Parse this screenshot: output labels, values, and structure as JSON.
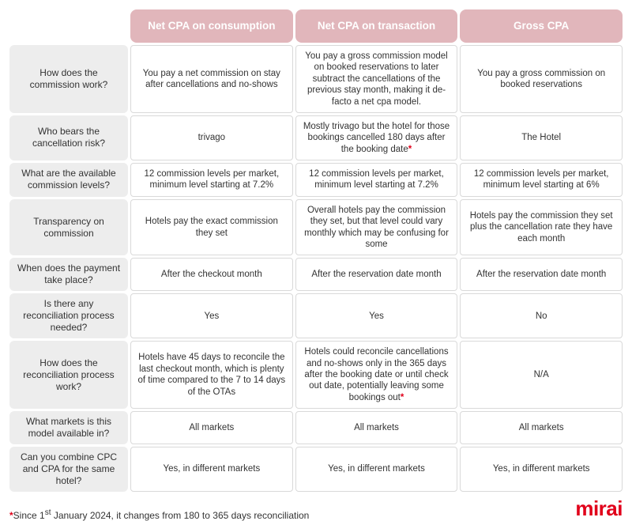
{
  "colors": {
    "header_bg": "#e1b6bb",
    "header_text": "#ffffff",
    "row_header_bg": "#ededed",
    "cell_border": "#d9d9d9",
    "asterisk": "#e1001a",
    "logo": "#e1001a",
    "background": "#ffffff"
  },
  "typography": {
    "header_fontsize": 13.5,
    "row_header_fontsize": 12,
    "cell_fontsize": 11.5,
    "footnote_fontsize": 12,
    "logo_fontsize": 26
  },
  "columns": [
    "Net CPA on consumption",
    "Net CPA on transaction",
    "Gross CPA"
  ],
  "rows": [
    {
      "label": "How does the commission work?",
      "cells": [
        {
          "text": "You pay a net commission on stay after cancellations and no-shows"
        },
        {
          "text": "You pay a gross commission model on booked reservations to later subtract the cancellations of the previous stay month, making it de-facto a net cpa model."
        },
        {
          "text": "You pay a gross commission on booked reservations"
        }
      ]
    },
    {
      "label": "Who bears the cancellation risk?",
      "cells": [
        {
          "text": "trivago"
        },
        {
          "text": "Mostly trivago but the hotel for those bookings cancelled 180 days after the booking date",
          "asterisk": true
        },
        {
          "text": "The Hotel"
        }
      ]
    },
    {
      "label": "What are the available commission levels?",
      "cells": [
        {
          "text": "12 commission levels per market, minimum level starting at 7.2%"
        },
        {
          "text": "12 commission levels per market, minimum level starting at 7.2%"
        },
        {
          "text": "12 commission levels per market, minimum level starting at 6%"
        }
      ]
    },
    {
      "label": "Transparency on commission",
      "cells": [
        {
          "text": "Hotels pay the exact commission they set"
        },
        {
          "text": "Overall hotels pay the commission they set, but that level could vary monthly which may be confusing for some"
        },
        {
          "text": "Hotels pay the commission they set plus the cancellation rate they have each month"
        }
      ]
    },
    {
      "label": "When does the payment take place?",
      "cells": [
        {
          "text": "After the checkout month"
        },
        {
          "text": "After the reservation date month"
        },
        {
          "text": "After the reservation date month"
        }
      ]
    },
    {
      "label": "Is there any reconciliation process needed?",
      "cells": [
        {
          "text": "Yes"
        },
        {
          "text": "Yes"
        },
        {
          "text": "No"
        }
      ]
    },
    {
      "label": "How does the reconciliation process work?",
      "cells": [
        {
          "text": "Hotels have 45 days to reconcile the last checkout month, which is plenty of time compared to the 7 to 14 days of the OTAs"
        },
        {
          "text": "Hotels could reconcile cancellations and no-shows only in the 365 days after the booking date or until check out date, potentially leaving some bookings out",
          "asterisk": true
        },
        {
          "text": "N/A"
        }
      ]
    },
    {
      "label": "What markets is this model available in?",
      "cells": [
        {
          "text": "All markets"
        },
        {
          "text": "All markets"
        },
        {
          "text": "All markets"
        }
      ]
    },
    {
      "label": "Can you combine CPC and CPA for the same hotel?",
      "cells": [
        {
          "text": "Yes, in different markets"
        },
        {
          "text": "Yes, in different markets"
        },
        {
          "text": "Yes, in different markets"
        }
      ]
    }
  ],
  "footnote": {
    "marker": "*",
    "prefix": "Since 1",
    "ordinal": "st",
    "suffix": " January 2024, it changes from 180 to 365 days reconciliation"
  },
  "logo_text": "mirai"
}
